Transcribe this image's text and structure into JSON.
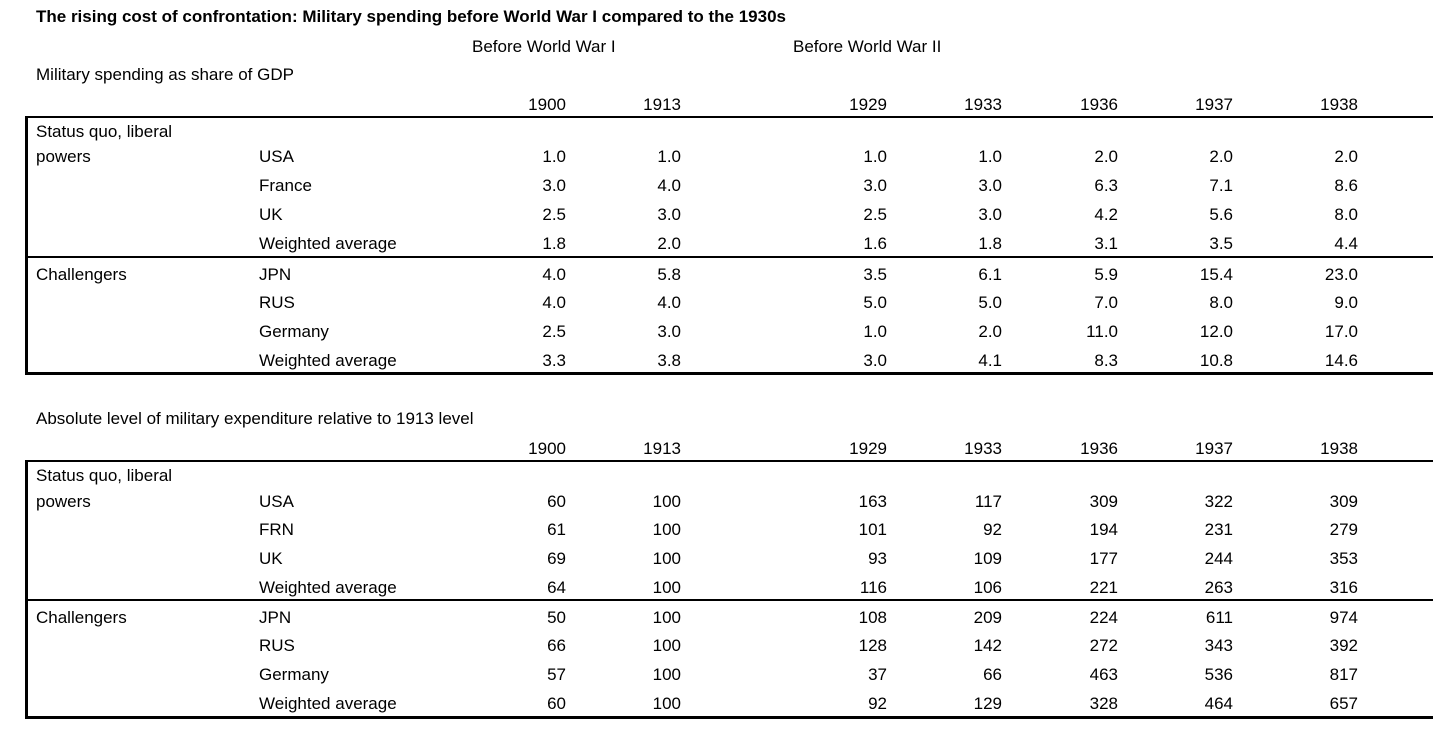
{
  "title": "The rising cost of confrontation: Military spending before World War I compared to the 1930s",
  "periods": [
    "Before World War I",
    "Before World War II"
  ],
  "years": [
    "1900",
    "1913",
    "1929",
    "1933",
    "1936",
    "1937",
    "1938"
  ],
  "tables": [
    {
      "label": "Military spending as share of GDP",
      "groups": [
        {
          "name_line1": "Status quo, liberal",
          "name_line2": "powers",
          "rows": [
            {
              "country": "USA",
              "values": [
                "1.0",
                "1.0",
                "1.0",
                "1.0",
                "2.0",
                "2.0",
                "2.0"
              ]
            },
            {
              "country": "France",
              "values": [
                "3.0",
                "4.0",
                "3.0",
                "3.0",
                "6.3",
                "7.1",
                "8.6"
              ]
            },
            {
              "country": "UK",
              "values": [
                "2.5",
                "3.0",
                "2.5",
                "3.0",
                "4.2",
                "5.6",
                "8.0"
              ]
            },
            {
              "country": "Weighted average",
              "values": [
                "1.8",
                "2.0",
                "1.6",
                "1.8",
                "3.1",
                "3.5",
                "4.4"
              ]
            }
          ]
        },
        {
          "name_line1": "Challengers",
          "name_line2": "",
          "rows": [
            {
              "country": "JPN",
              "values": [
                "4.0",
                "5.8",
                "3.5",
                "6.1",
                "5.9",
                "15.4",
                "23.0"
              ]
            },
            {
              "country": "RUS",
              "values": [
                "4.0",
                "4.0",
                "5.0",
                "5.0",
                "7.0",
                "8.0",
                "9.0"
              ]
            },
            {
              "country": "Germany",
              "values": [
                "2.5",
                "3.0",
                "1.0",
                "2.0",
                "11.0",
                "12.0",
                "17.0"
              ]
            },
            {
              "country": "Weighted average",
              "values": [
                "3.3",
                "3.8",
                "3.0",
                "4.1",
                "8.3",
                "10.8",
                "14.6"
              ]
            }
          ]
        }
      ]
    },
    {
      "label": "Absolute level of military expenditure relative to 1913 level",
      "groups": [
        {
          "name_line1": "Status quo, liberal",
          "name_line2": "powers",
          "rows": [
            {
              "country": "USA",
              "values": [
                "60",
                "100",
                "163",
                "117",
                "309",
                "322",
                "309"
              ]
            },
            {
              "country": "FRN",
              "values": [
                "61",
                "100",
                "101",
                "92",
                "194",
                "231",
                "279"
              ]
            },
            {
              "country": "UK",
              "values": [
                "69",
                "100",
                "93",
                "109",
                "177",
                "244",
                "353"
              ]
            },
            {
              "country": "Weighted average",
              "values": [
                "64",
                "100",
                "116",
                "106",
                "221",
                "263",
                "316"
              ]
            }
          ]
        },
        {
          "name_line1": "Challengers",
          "name_line2": "",
          "rows": [
            {
              "country": "JPN",
              "values": [
                "50",
                "100",
                "108",
                "209",
                "224",
                "611",
                "974"
              ]
            },
            {
              "country": "RUS",
              "values": [
                "66",
                "100",
                "128",
                "142",
                "272",
                "343",
                "392"
              ]
            },
            {
              "country": "Germany",
              "values": [
                "57",
                "100",
                "37",
                "66",
                "463",
                "536",
                "817"
              ]
            },
            {
              "country": "Weighted average",
              "values": [
                "60",
                "100",
                "92",
                "129",
                "328",
                "464",
                "657"
              ]
            }
          ]
        }
      ]
    }
  ]
}
